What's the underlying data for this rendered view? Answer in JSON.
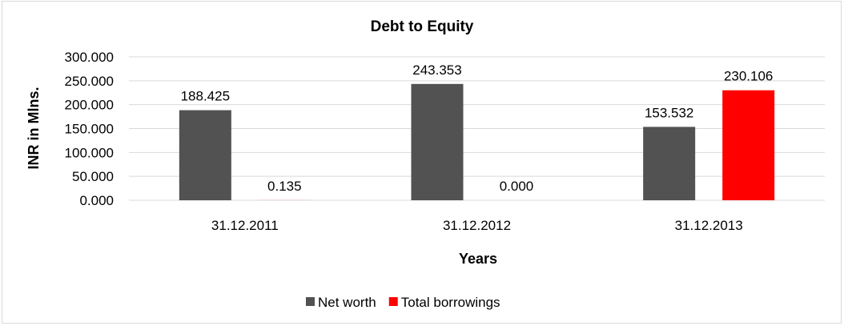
{
  "chart_data": {
    "type": "bar",
    "title": "Debt to Equity",
    "xlabel": "Years",
    "ylabel": "INR in Mlns.",
    "categories": [
      "31.12.2011",
      "31.12.2012",
      "31.12.2013"
    ],
    "series": [
      {
        "name": "Net worth",
        "color": "#525252",
        "values": [
          188.425,
          243.353,
          153.532
        ],
        "labels": [
          "188.425",
          "243.353",
          "153.532"
        ]
      },
      {
        "name": "Total borrowings",
        "color": "#ff0000",
        "values": [
          0.135,
          0.0,
          230.106
        ],
        "labels": [
          "0.135",
          "0.000",
          "230.106"
        ]
      }
    ],
    "ylim": [
      0,
      300
    ],
    "yticks": [
      "0.000",
      "50.000",
      "100.000",
      "150.000",
      "200.000",
      "250.000",
      "300.000"
    ],
    "grid": true,
    "gridColor": "#d9d9d9",
    "legend": "bottom"
  }
}
